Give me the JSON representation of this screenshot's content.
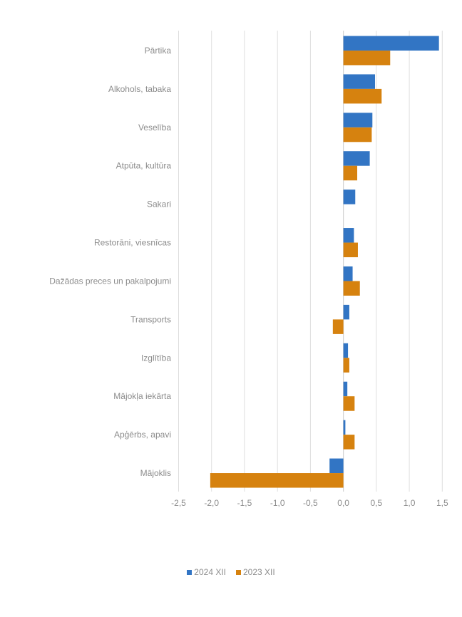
{
  "chart_data": {
    "type": "bar",
    "orientation": "horizontal",
    "title": "",
    "xlabel": "",
    "ylabel": "",
    "categories": [
      "Pārtika",
      "Alkohols, tabaka",
      "Veselība",
      "Atpūta, kultūra",
      "Sakari",
      "Restorāni, viesnīcas",
      "Dažādas preces un pakalpojumi",
      "Transports",
      "Izglītība",
      "Mājokļa iekārta",
      "Apģērbs, apavi",
      "Mājoklis"
    ],
    "series": [
      {
        "name": "2024 XII",
        "color": "#3275C4",
        "values": [
          1.45,
          0.48,
          0.44,
          0.4,
          0.18,
          0.16,
          0.14,
          0.09,
          0.07,
          0.06,
          0.03,
          -0.21
        ]
      },
      {
        "name": "2023 XII",
        "color": "#D6820F",
        "values": [
          0.71,
          0.58,
          0.43,
          0.21,
          0.0,
          0.22,
          0.25,
          -0.16,
          0.09,
          0.17,
          0.17,
          -2.02
        ]
      }
    ],
    "xlim": [
      -2.5,
      1.5
    ],
    "xticks": [
      -2.5,
      -2.0,
      -1.5,
      -1.0,
      -0.5,
      0.0,
      0.5,
      1.0,
      1.5
    ],
    "xtick_labels": [
      "-2,5",
      "-2,0",
      "-1,5",
      "-1,0",
      "-0,5",
      "0,0",
      "0,5",
      "1,0",
      "1,5"
    ],
    "grid": "vertical",
    "legend_position": "bottom"
  },
  "legend": {
    "items": [
      {
        "label": "2024 XII",
        "color": "#3275C4"
      },
      {
        "label": "2023 XII",
        "color": "#D6820F"
      }
    ]
  }
}
